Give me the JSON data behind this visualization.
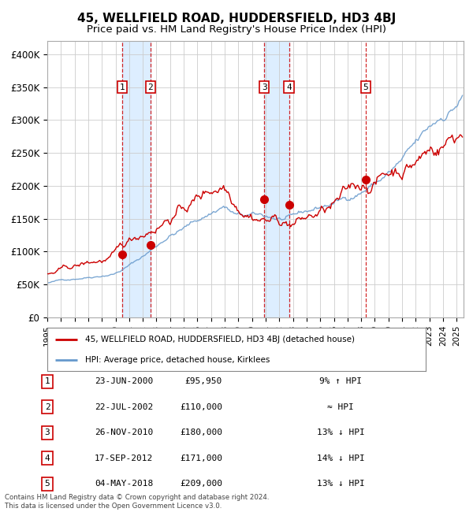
{
  "title": "45, WELLFIELD ROAD, HUDDERSFIELD, HD3 4BJ",
  "subtitle": "Price paid vs. HM Land Registry's House Price Index (HPI)",
  "legend_line1": "45, WELLFIELD ROAD, HUDDERSFIELD, HD3 4BJ (detached house)",
  "legend_line2": "HPI: Average price, detached house, Kirklees",
  "footnote1": "Contains HM Land Registry data © Crown copyright and database right 2024.",
  "footnote2": "This data is licensed under the Open Government Licence v3.0.",
  "transactions": [
    {
      "num": 1,
      "date": "23-JUN-2000",
      "price": 95950,
      "note": "9% ↑ HPI",
      "year": 2000.47
    },
    {
      "num": 2,
      "date": "22-JUL-2002",
      "price": 110000,
      "note": "≈ HPI",
      "year": 2002.55
    },
    {
      "num": 3,
      "date": "26-NOV-2010",
      "price": 180000,
      "note": "13% ↓ HPI",
      "year": 2010.9
    },
    {
      "num": 4,
      "date": "17-SEP-2012",
      "price": 171000,
      "note": "14% ↓ HPI",
      "year": 2012.71
    },
    {
      "num": 5,
      "date": "04-MAY-2018",
      "price": 209000,
      "note": "13% ↓ HPI",
      "year": 2018.34
    }
  ],
  "price_line_color": "#cc0000",
  "hpi_line_color": "#6699cc",
  "dashed_line_color": "#cc0000",
  "shade_color": "#ddeeff",
  "marker_color": "#cc0000",
  "ylim": [
    0,
    420000
  ],
  "xlim_start": 1995,
  "xlim_end": 2025.5,
  "background_color": "#ffffff",
  "grid_color": "#cccccc",
  "title_fontsize": 11,
  "subtitle_fontsize": 9.5
}
